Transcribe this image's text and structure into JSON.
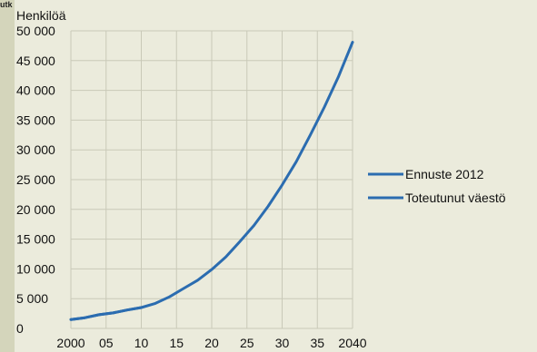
{
  "corner_text": "utk",
  "chart_data": {
    "type": "line",
    "title": "",
    "ylabel": "Henkilöä",
    "xlabel": "",
    "xlim": [
      2000,
      2040
    ],
    "ylim": [
      0,
      50000
    ],
    "x_ticks": [
      2000,
      2005,
      2010,
      2015,
      2020,
      2025,
      2030,
      2035,
      2040
    ],
    "x_tick_labels": [
      "2000",
      "05",
      "10",
      "15",
      "20",
      "25",
      "30",
      "35",
      "2040"
    ],
    "y_ticks": [
      0,
      5000,
      10000,
      15000,
      20000,
      25000,
      30000,
      35000,
      40000,
      45000,
      50000
    ],
    "y_tick_labels": [
      "0",
      "5 000",
      "10 000",
      "15 000",
      "20 000",
      "25 000",
      "30 000",
      "35 000",
      "40 000",
      "45 000",
      "50 000"
    ],
    "grid": true,
    "legend_position": "right",
    "series": [
      {
        "name": "Ennuste 2012",
        "color": "#2b6cb0",
        "x": [
          2000,
          2002,
          2004,
          2006,
          2008,
          2010,
          2012,
          2014,
          2016,
          2018,
          2020,
          2022,
          2024,
          2026,
          2028,
          2030,
          2032,
          2034,
          2036,
          2038,
          2040
        ],
        "values": [
          1500,
          1800,
          2300,
          2600,
          3100,
          3500,
          4200,
          5300,
          6700,
          8100,
          9900,
          12000,
          14600,
          17300,
          20500,
          24100,
          28000,
          32500,
          37200,
          42300,
          48100
        ]
      },
      {
        "name": "Toteutunut väestö",
        "color": "#2b6cb0",
        "x": [
          2000,
          2002,
          2004,
          2006,
          2008,
          2010
        ],
        "values": [
          1500,
          1800,
          2300,
          2600,
          3100,
          3500
        ]
      }
    ]
  }
}
